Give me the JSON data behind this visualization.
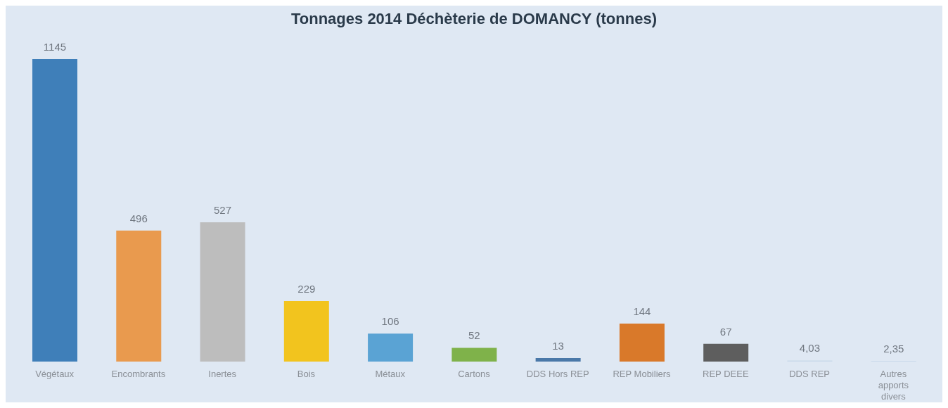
{
  "chart_data": {
    "type": "bar",
    "title": "Tonnages 2014 Déchèterie de DOMANCY (tonnes)",
    "categories": [
      "Végétaux",
      "Encombrants",
      "Inertes",
      "Bois",
      "Métaux",
      "Cartons",
      "DDS Hors REP",
      "REP Mobiliers",
      "REP DEEE",
      "DDS REP",
      "Autres apports divers"
    ],
    "values": [
      1145,
      496,
      527,
      229,
      106,
      52,
      13,
      144,
      67,
      4.03,
      2.35
    ],
    "value_labels": [
      "1145",
      "496",
      "527",
      "229",
      "106",
      "52",
      "13",
      "144",
      "67",
      "4,03",
      "2,35"
    ],
    "colors": [
      "#3f7fb9",
      "#e99a4e",
      "#bdbdbd",
      "#f2c41e",
      "#5aa3d4",
      "#7fb24a",
      "#4a78a8",
      "#d9792a",
      "#5e5e5e",
      "#c9d9ea",
      "#c9d9ea"
    ],
    "ylim": [
      0,
      1145
    ]
  }
}
